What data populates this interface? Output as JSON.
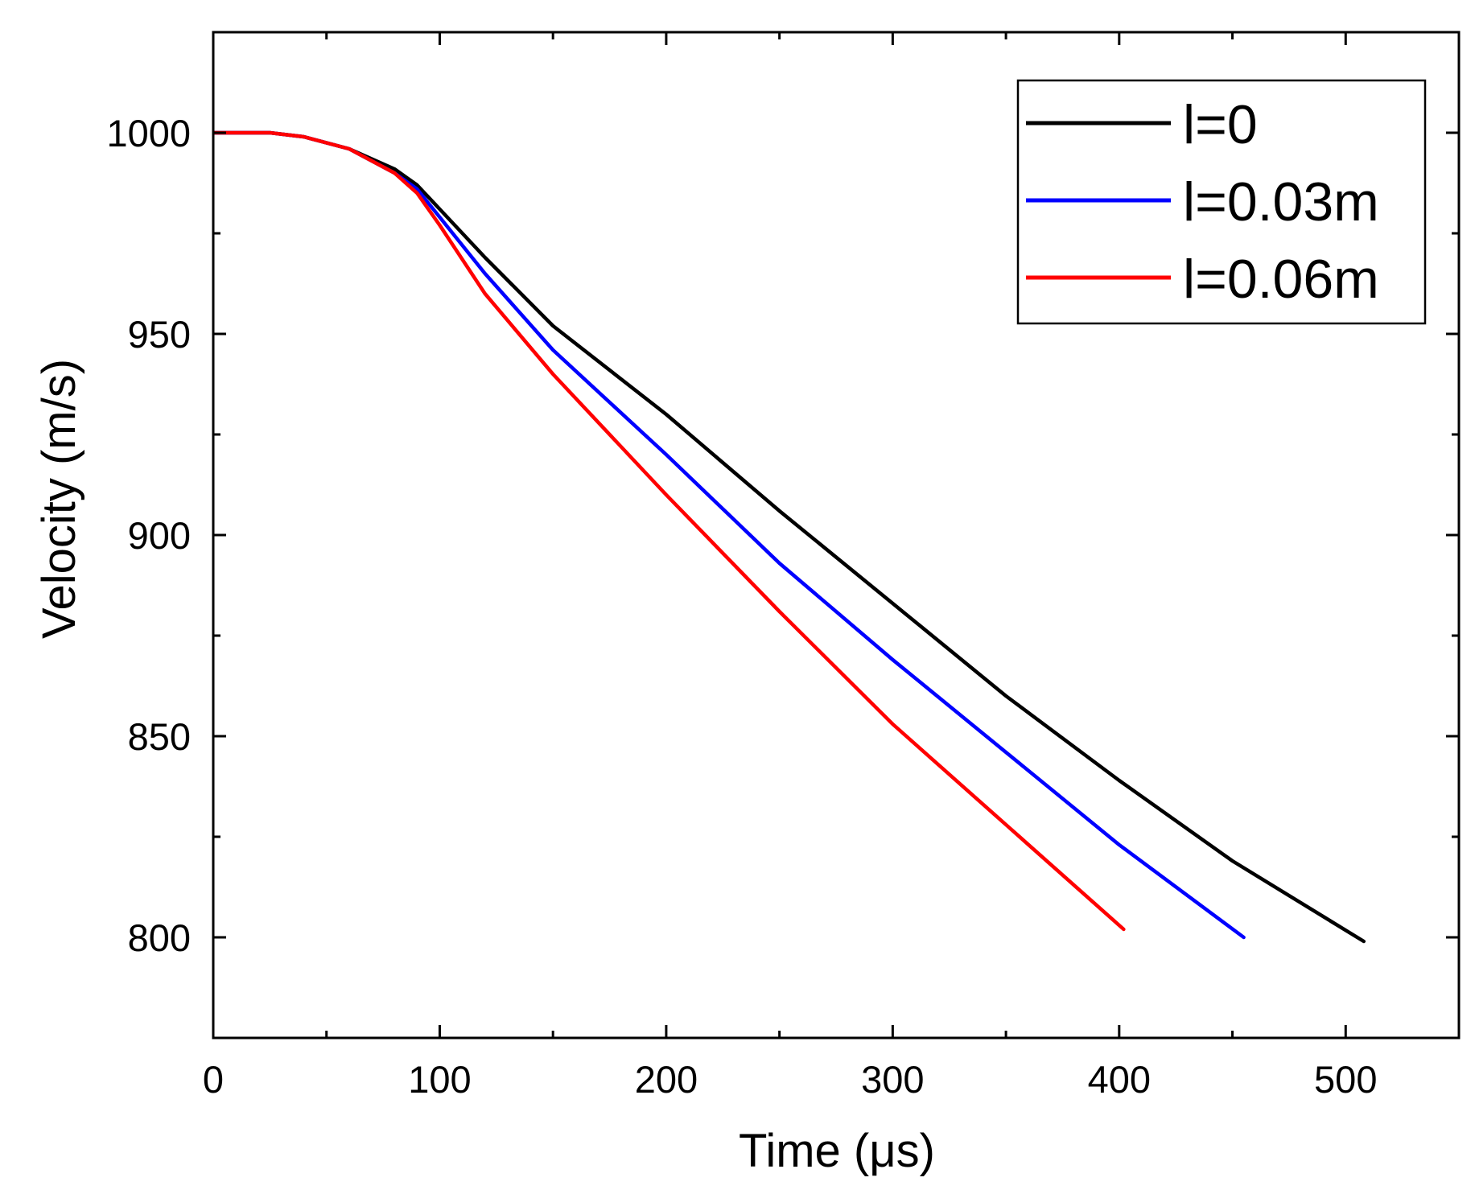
{
  "chart_data": {
    "type": "line",
    "title": "",
    "xlabel": "Time (μs)",
    "ylabel": "Velocity (m/s)",
    "xlim": [
      0,
      550
    ],
    "ylim": [
      775,
      1025
    ],
    "xticks": [
      0,
      100,
      200,
      300,
      400,
      500
    ],
    "xtick_labels": [
      "0",
      "100",
      "200",
      "300",
      "400",
      "500"
    ],
    "yticks": [
      800,
      850,
      900,
      950,
      1000
    ],
    "ytick_labels": [
      "800",
      "850",
      "900",
      "950",
      "1000"
    ],
    "x_minor_step": 50,
    "y_minor_step": 25,
    "grid": false,
    "legend_position": "top-right",
    "series": [
      {
        "name": "l=0",
        "color": "#000000",
        "x": [
          0,
          25,
          40,
          60,
          80,
          90,
          100,
          120,
          150,
          200,
          250,
          300,
          350,
          400,
          450,
          508
        ],
        "y": [
          1000,
          1000,
          999,
          996,
          991,
          987,
          981,
          969,
          952,
          930,
          906,
          883,
          860,
          839,
          819,
          799
        ]
      },
      {
        "name": "l=0.03m",
        "color": "#0000ff",
        "x": [
          0,
          25,
          40,
          60,
          80,
          90,
          100,
          120,
          150,
          200,
          250,
          300,
          350,
          400,
          455
        ],
        "y": [
          1000,
          1000,
          999,
          996,
          990,
          986,
          979,
          965,
          946,
          920,
          893,
          869,
          846,
          823,
          800
        ]
      },
      {
        "name": "l=0.06m",
        "color": "#ff0000",
        "x": [
          0,
          25,
          40,
          60,
          80,
          90,
          100,
          120,
          150,
          200,
          250,
          300,
          350,
          402
        ],
        "y": [
          1000,
          1000,
          999,
          996,
          990,
          985,
          977,
          960,
          940,
          910,
          881,
          853,
          828,
          802
        ]
      }
    ]
  }
}
